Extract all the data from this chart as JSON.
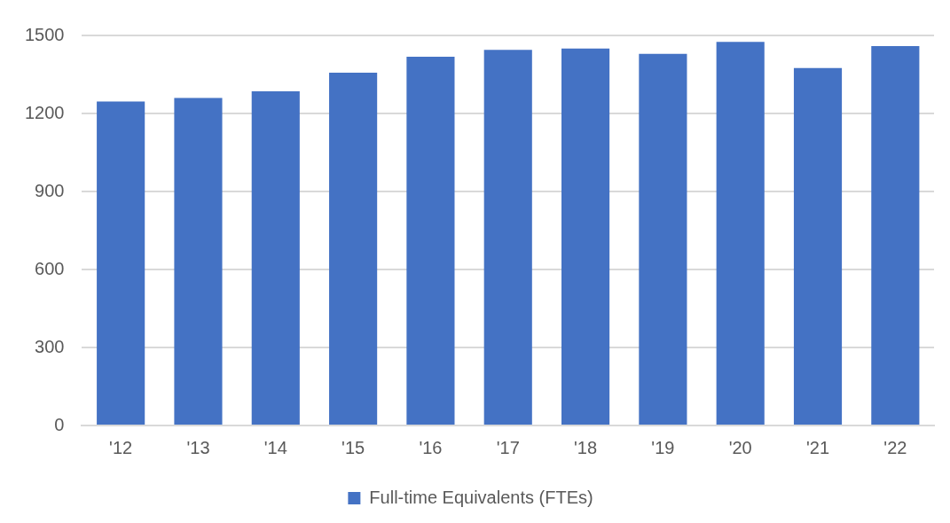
{
  "chart_data": {
    "type": "bar",
    "categories": [
      "'12",
      "'13",
      "'14",
      "'15",
      "'16",
      "'17",
      "'18",
      "'19",
      "'20",
      "'21",
      "'22"
    ],
    "series": [
      {
        "name": "Full-time Equivalents (FTEs)",
        "color": "#4472c4",
        "values": [
          1246,
          1260,
          1285,
          1357,
          1418,
          1445,
          1450,
          1429,
          1475,
          1375,
          1459
        ]
      }
    ],
    "ylim": [
      0,
      1500
    ],
    "yticks": [
      0,
      300,
      600,
      900,
      1200,
      1500
    ],
    "grid": "y",
    "legend": "bottom"
  }
}
